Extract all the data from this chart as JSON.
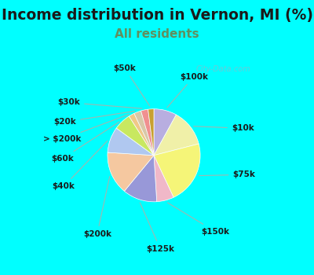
{
  "title": "Income distribution in Vernon, MI (%)",
  "subtitle": "All residents",
  "outer_bg": "#00FFFF",
  "chart_bg_top": "#c8e8e0",
  "chart_bg_bottom": "#d0edd8",
  "watermark": "City-Data.com",
  "title_fontsize": 13.5,
  "subtitle_fontsize": 11,
  "subtitle_color": "#609060",
  "title_color": "#1a1a1a",
  "slices": [
    {
      "label": "$100k",
      "value": 8.0,
      "color": "#b8aee0"
    },
    {
      "label": "$10k",
      "value": 13.0,
      "color": "#f0f0a8"
    },
    {
      "label": "$75k",
      "value": 22.0,
      "color": "#f5f578"
    },
    {
      "label": "$150k",
      "value": 6.0,
      "color": "#f0b8c8"
    },
    {
      "label": "$125k",
      "value": 12.0,
      "color": "#9898d8"
    },
    {
      "label": "$200k",
      "value": 15.0,
      "color": "#f5c8a0"
    },
    {
      "label": "$40k",
      "value": 9.0,
      "color": "#b0c8f0"
    },
    {
      "label": "$60k",
      "value": 6.0,
      "color": "#c8e860"
    },
    {
      "label": "> $200k",
      "value": 2.0,
      "color": "#f0c888"
    },
    {
      "label": "$20k",
      "value": 2.5,
      "color": "#d8c8a8"
    },
    {
      "label": "$30k",
      "value": 2.5,
      "color": "#f09090"
    },
    {
      "label": "$50k",
      "value": 2.0,
      "color": "#c8a030"
    }
  ]
}
